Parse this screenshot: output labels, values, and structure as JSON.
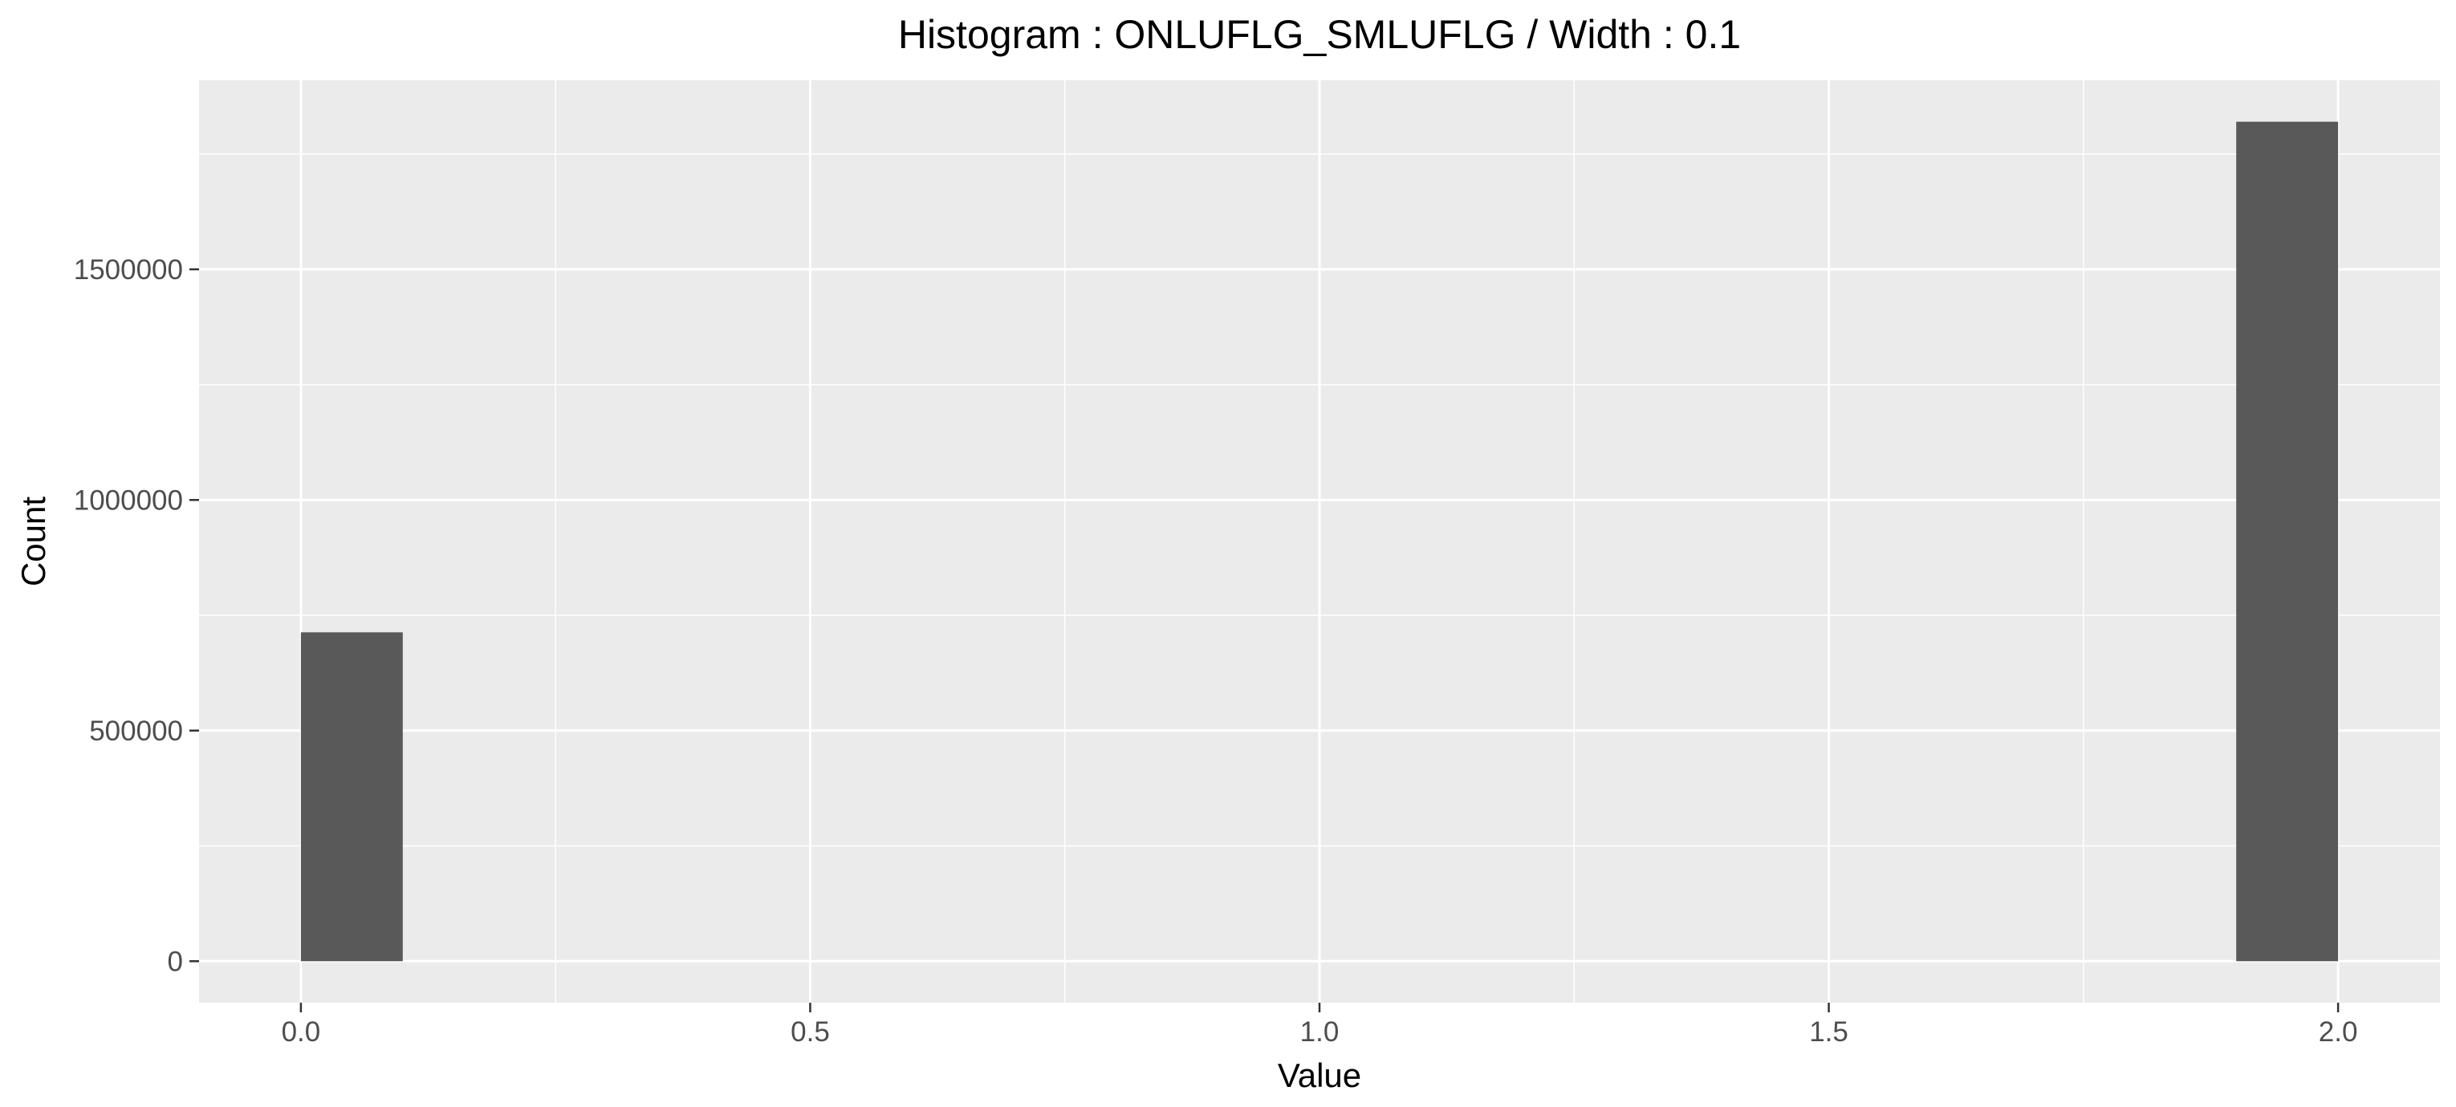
{
  "chart_data": {
    "type": "bar",
    "title": "Histogram : ONLUFLG_SMLUFLG / Width : 0.1",
    "xlabel": "Value",
    "ylabel": "Count",
    "bin_width": 0.1,
    "xlim": [
      -0.1,
      2.1
    ],
    "ylim": [
      -90000,
      1910000
    ],
    "x_ticks": [
      0.0,
      0.5,
      1.0,
      1.5,
      2.0
    ],
    "x_tick_labels": [
      "0.0",
      "0.5",
      "1.0",
      "1.5",
      "2.0"
    ],
    "y_ticks": [
      0,
      500000,
      1000000,
      1500000
    ],
    "y_tick_labels": [
      "0",
      "500000",
      "1000000",
      "1500000"
    ],
    "bins": [
      {
        "x_start": 0.0,
        "x_end": 0.1,
        "count": 713000
      },
      {
        "x_start": 1.9,
        "x_end": 2.0,
        "count": 1820000
      }
    ],
    "grid": true,
    "colors": {
      "panel_background": "#ebebeb",
      "grid_major": "#ffffff",
      "bar_fill": "#595959",
      "tick_label": "#4d4d4d",
      "text": "#000000"
    }
  }
}
